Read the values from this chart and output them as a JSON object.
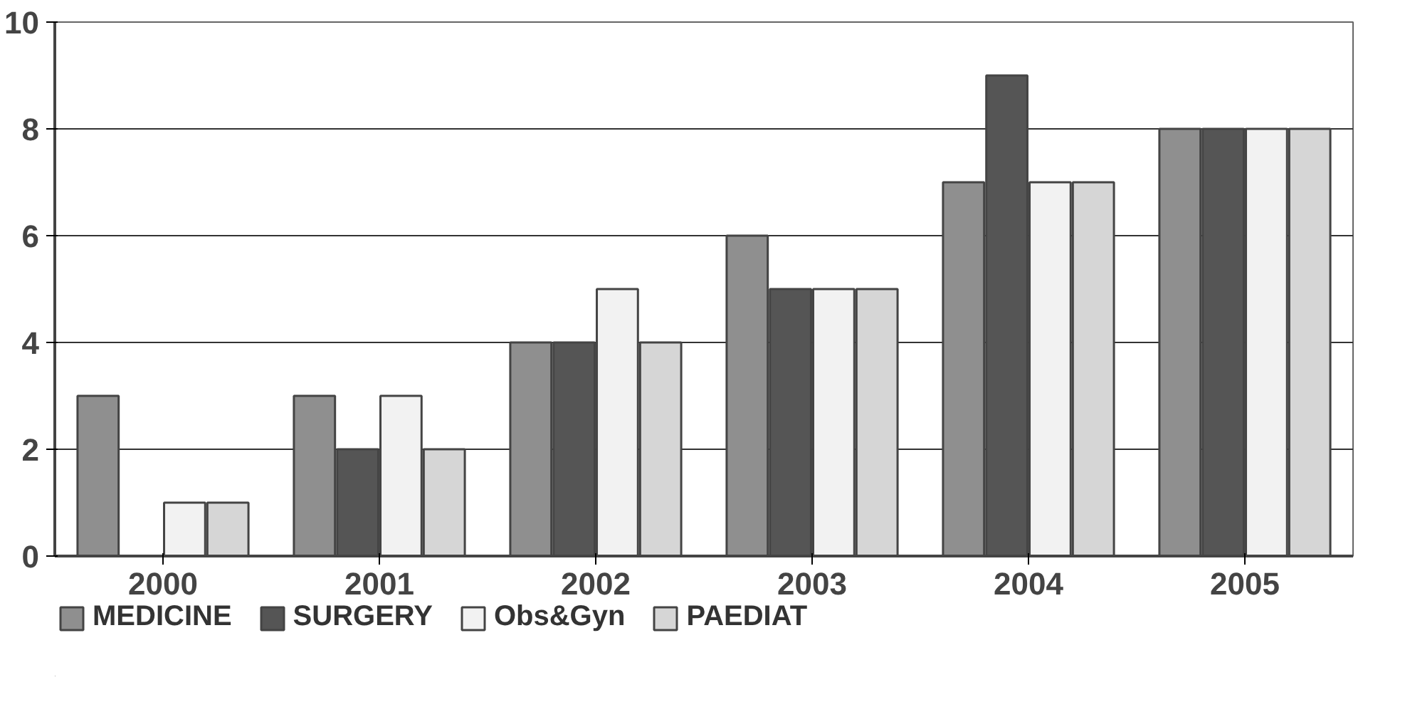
{
  "chart_data": {
    "type": "bar",
    "categories": [
      "2000",
      "2001",
      "2002",
      "2003",
      "2004",
      "2005"
    ],
    "series": [
      {
        "name": "MEDICINE",
        "color": "#8f8f8f",
        "values": [
          3,
          3,
          4,
          6,
          7,
          8
        ]
      },
      {
        "name": "SURGERY",
        "color": "#555555",
        "values": [
          0,
          2,
          4,
          5,
          9,
          8
        ]
      },
      {
        "name": "Obs&Gyn",
        "color": "#f2f2f2",
        "values": [
          1,
          3,
          5,
          5,
          7,
          8
        ]
      },
      {
        "name": "PAEDIAT",
        "color": "#d6d6d6",
        "values": [
          1,
          2,
          4,
          5,
          7,
          8
        ]
      }
    ],
    "ylim": [
      0,
      10
    ],
    "yticks": [
      0,
      2,
      4,
      6,
      8,
      10
    ],
    "grid": "y",
    "legend": "bottom"
  }
}
